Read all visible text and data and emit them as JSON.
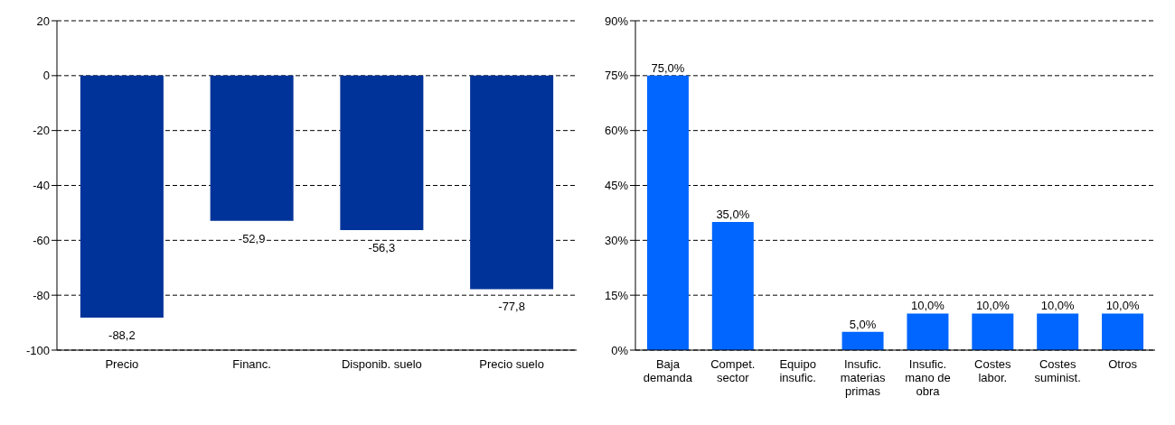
{
  "chart_data": [
    {
      "type": "bar",
      "categories": [
        "Precio",
        "Financ.",
        "Disponib. suelo",
        "Precio suelo"
      ],
      "series": [
        {
          "color": "#003399",
          "values": [
            -88.2,
            -52.9,
            -56.3,
            -77.8
          ],
          "value_labels": [
            "-88,2",
            "-52,9",
            "-56,3",
            "-77,8"
          ]
        }
      ],
      "ylim": [
        -100,
        20
      ],
      "yticks": [
        -100,
        -80,
        -60,
        -40,
        -20,
        0,
        20
      ],
      "grid": "y",
      "legend": false
    },
    {
      "type": "bar",
      "categories": [
        "Baja demanda",
        "Compet. sector",
        "Equipo insufic.",
        "Insufic. materias primas",
        "Insufic. mano de obra",
        "Costes labor.",
        "Costes suminist.",
        "Otros"
      ],
      "series": [
        {
          "color": "#0066ff",
          "values": [
            75,
            35,
            0,
            5,
            10,
            10,
            10,
            10
          ],
          "value_labels": [
            "75,0%",
            "35,0%",
            null,
            "5,0%",
            "10,0%",
            "10,0%",
            "10,0%",
            "10,0%"
          ]
        }
      ],
      "ylim": [
        0,
        90
      ],
      "yticks": [
        {
          "value": 0,
          "label": "0%"
        },
        {
          "value": 15,
          "label": "15%"
        },
        {
          "value": 30,
          "label": "30%"
        },
        {
          "value": 45,
          "label": "45%"
        },
        {
          "value": 60,
          "label": "60%"
        },
        {
          "value": 75,
          "label": "75%"
        },
        {
          "value": 90,
          "label": "90%"
        }
      ],
      "grid": "y",
      "legend": false
    }
  ]
}
